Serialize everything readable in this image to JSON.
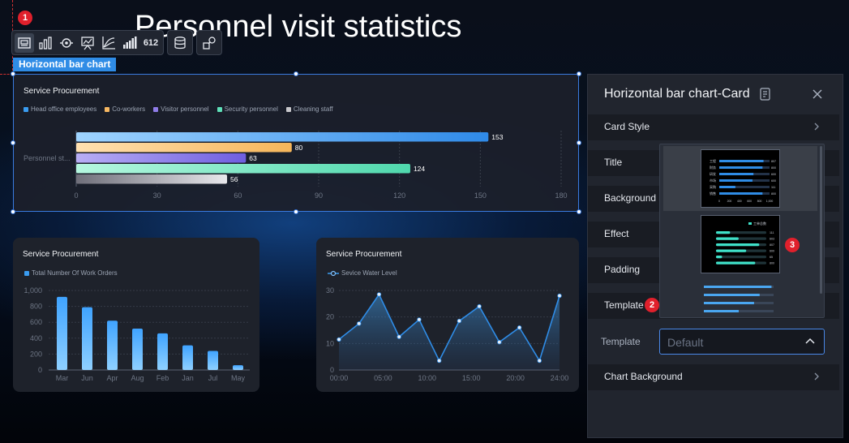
{
  "page": {
    "title": "Personnel visit statistics"
  },
  "badges": [
    "1",
    "2",
    "3"
  ],
  "toolbar": {
    "group1": [
      {
        "name": "image-icon",
        "label": ""
      },
      {
        "name": "bar-chart-icon",
        "label": ""
      },
      {
        "name": "radar-icon",
        "label": ""
      },
      {
        "name": "presentation-icon",
        "label": ""
      },
      {
        "name": "line-chart-icon",
        "label": ""
      },
      {
        "name": "signal-bars-icon",
        "label": ""
      },
      {
        "name": "number-icon",
        "label": "612"
      }
    ],
    "group2": [
      {
        "name": "database-icon"
      }
    ],
    "group3": [
      {
        "name": "shapes-icon"
      }
    ]
  },
  "selection_tag": "Horizontal bar chart",
  "main_card": {
    "title": "Service Procurement",
    "legend": [
      {
        "label": "Head office employees",
        "color": "#3a9cf0"
      },
      {
        "label": "Co-workers",
        "color": "#f7b862"
      },
      {
        "label": "Visitor personnel",
        "color": "#8f7ce8"
      },
      {
        "label": "Security personnel",
        "color": "#5fe0b8"
      },
      {
        "label": "Cleaning staff",
        "color": "#c8c8cc"
      }
    ]
  },
  "card2": {
    "title": "Service Procurement",
    "legend": "Total Number Of Work Orders"
  },
  "card3": {
    "title": "Service Procurement",
    "legend": "Sevice Water Level"
  },
  "panel": {
    "title": "Horizontal bar chart-Card",
    "rows": [
      {
        "label": "Card Style",
        "chevron": true
      },
      {
        "label": "Title",
        "chevron": false
      },
      {
        "label": "Background",
        "chevron": false
      },
      {
        "label": "Effect",
        "chevron": false
      },
      {
        "label": "Padding",
        "chevron": false
      },
      {
        "label": "Template",
        "chevron": false
      },
      {
        "label": "Chart Background",
        "chevron": true
      }
    ],
    "template_label": "Template",
    "template_value": "Default"
  },
  "dropdown": {
    "thumb1": {
      "labels": [
        "工程",
        "财务",
        "研发",
        "市场",
        "采购",
        "销售"
      ],
      "values": [
        "807",
        "800",
        "600",
        "600",
        "111",
        "800"
      ],
      "axis": [
        "0",
        "200",
        "400",
        "600",
        "800",
        "1,000"
      ]
    },
    "thumb2": {
      "legend": "工单总数",
      "values": [
        "111",
        "603",
        "807",
        "600",
        "65",
        "800"
      ]
    }
  },
  "chart_data": [
    {
      "type": "bar",
      "orientation": "horizontal",
      "title": "Service Procurement",
      "categories": [
        "Personnel st..."
      ],
      "series": [
        {
          "name": "Head office employees",
          "values": [
            153
          ]
        },
        {
          "name": "Co-workers",
          "values": [
            80
          ]
        },
        {
          "name": "Visitor personnel",
          "values": [
            63
          ]
        },
        {
          "name": "Security personnel",
          "values": [
            124
          ]
        },
        {
          "name": "Cleaning staff",
          "values": [
            56
          ]
        }
      ],
      "xlim": [
        0,
        180
      ],
      "xticks": [
        "0",
        "30",
        "60",
        "90",
        "120",
        "150",
        "180"
      ],
      "grid": true,
      "legend_position": "top-left"
    },
    {
      "type": "bar",
      "title": "Service Procurement",
      "categories": [
        "Mar",
        "Jun",
        "Apr",
        "Aug",
        "Feb",
        "Jan",
        "Jul",
        "May"
      ],
      "series": [
        {
          "name": "Total Number Of Work Orders",
          "values": [
            920,
            790,
            620,
            520,
            460,
            310,
            240,
            60
          ]
        }
      ],
      "ylim": [
        0,
        1000
      ],
      "yticks": [
        "0",
        "200",
        "400",
        "600",
        "800",
        "1,000"
      ],
      "grid": true,
      "legend_position": "top-left"
    },
    {
      "type": "area",
      "title": "Service Procurement",
      "x": [
        0,
        1,
        2,
        3,
        4,
        5,
        6,
        7,
        8,
        9,
        10,
        11
      ],
      "xticks": [
        "00:00",
        "05:00",
        "10:00",
        "15:00",
        "20:00",
        "24:00"
      ],
      "series": [
        {
          "name": "Sevice Water Level",
          "values": [
            11.5,
            17.5,
            28.5,
            12.5,
            19,
            3.5,
            18.5,
            24,
            10.5,
            16,
            3.5,
            28
          ]
        }
      ],
      "ylim": [
        0,
        30
      ],
      "yticks": [
        "0",
        "10",
        "20",
        "30"
      ],
      "grid": true,
      "legend_position": "top-left"
    }
  ]
}
